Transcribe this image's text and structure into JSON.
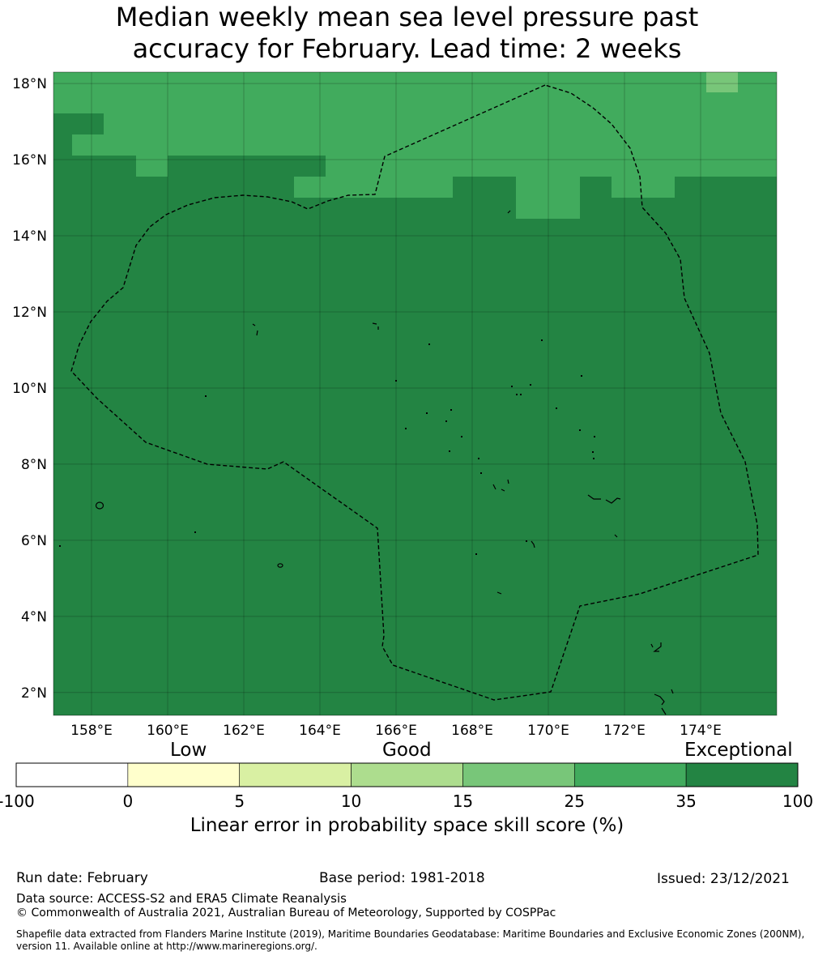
{
  "title": {
    "line1": "Median weekly mean sea level pressure past",
    "line2": "accuracy for February. Lead time: 2 weeks"
  },
  "map": {
    "lat_labels": [
      "18°N",
      "16°N",
      "14°N",
      "12°N",
      "10°N",
      "8°N",
      "6°N",
      "4°N",
      "2°N"
    ],
    "lon_labels": [
      "158°E",
      "160°E",
      "162°E",
      "164°E",
      "166°E",
      "168°E",
      "170°E",
      "172°E",
      "174°E"
    ],
    "lat_range": [
      1.4,
      18.3
    ],
    "lon_range": [
      157.0,
      176.0
    ],
    "colors": {
      "exceptional": "#238443",
      "band_25_35": "#41ab5d",
      "band_15_25": "#78c679"
    }
  },
  "colorbar": {
    "category_labels": {
      "low": "Low",
      "good": "Good",
      "exceptional": "Exceptional"
    },
    "ticks": [
      "-100",
      "0",
      "5",
      "10",
      "15",
      "25",
      "35",
      "100"
    ],
    "colors": [
      "#ffffff",
      "#ffffcc",
      "#d9f0a3",
      "#addd8e",
      "#78c679",
      "#41ab5d",
      "#238443"
    ],
    "label": "Linear error in probability space skill score (%)"
  },
  "footer": {
    "run_date": "Run date: February",
    "base_period": "Base period: 1981-2018",
    "issued": "Issued: 23/12/2021",
    "data_source": "Data source: ACCESS-S2 and ERA5 Climate Reanalysis",
    "copyright": "© Commonwealth of Australia 2021, Australian Bureau of Meteorology, Supported by COSPPac",
    "shapefile": "Shapefile data extracted from Flanders Marine Institute (2019), Maritime Boundaries Geodatabase: Maritime Boundaries and Exclusive Economic Zones (200NM), version 11. Available online at http://www.marineregions.org/."
  }
}
